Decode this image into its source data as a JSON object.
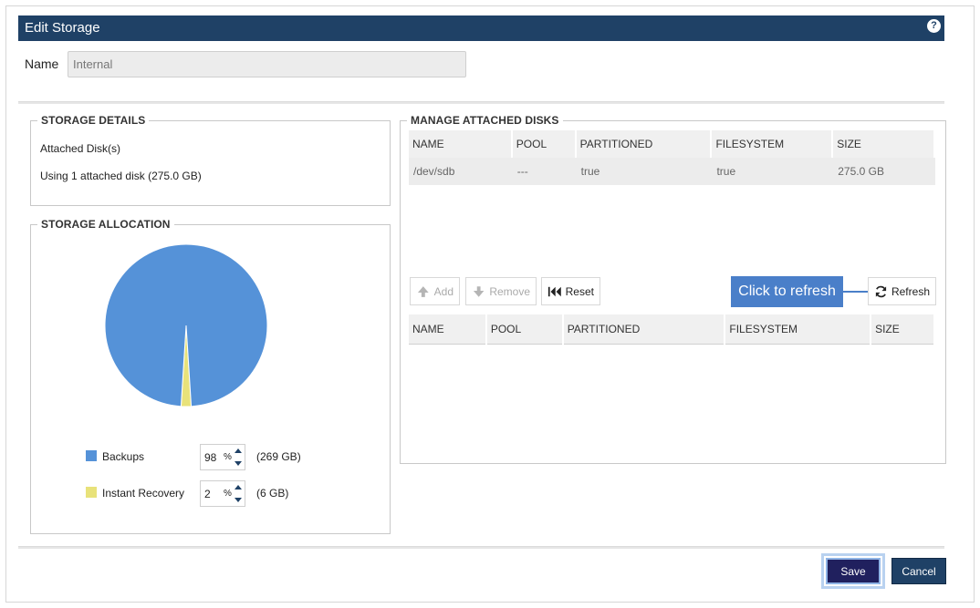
{
  "dialog": {
    "title": "Edit Storage",
    "help_icon": "?",
    "name_label": "Name",
    "name_value": "Internal"
  },
  "storage_details": {
    "legend": "STORAGE DETAILS",
    "attached_label": "Attached Disk(s)",
    "using_text": "Using 1 attached disk (275.0 GB)"
  },
  "storage_allocation": {
    "legend": "STORAGE ALLOCATION",
    "items": [
      {
        "label": "Backups",
        "value": "98",
        "unit": "%",
        "size": "(269 GB)",
        "color": "#5592d8"
      },
      {
        "label": "Instant Recovery",
        "value": "2",
        "unit": "%",
        "size": "(6 GB)",
        "color": "#e8e27a"
      }
    ]
  },
  "chart_data": {
    "type": "pie",
    "categories": [
      "Backups",
      "Instant Recovery"
    ],
    "values": [
      98,
      2
    ],
    "colors": [
      "#5592d8",
      "#e8e27a"
    ]
  },
  "manage_disks": {
    "legend": "MANAGE ATTACHED DISKS",
    "columns": [
      "NAME",
      "POOL",
      "PARTITIONED",
      "FILESYSTEM",
      "SIZE"
    ],
    "rows": [
      [
        "/dev/sdb",
        "---",
        "true",
        "true",
        "275.0 GB"
      ]
    ],
    "lower_columns": [
      "NAME",
      "POOL",
      "PARTITIONED",
      "FILESYSTEM",
      "SIZE"
    ],
    "add_label": "Add",
    "remove_label": "Remove",
    "reset_label": "Reset",
    "refresh_label": "Refresh",
    "tooltip": "Click to refresh"
  },
  "footer": {
    "save_label": "Save",
    "cancel_label": "Cancel"
  }
}
